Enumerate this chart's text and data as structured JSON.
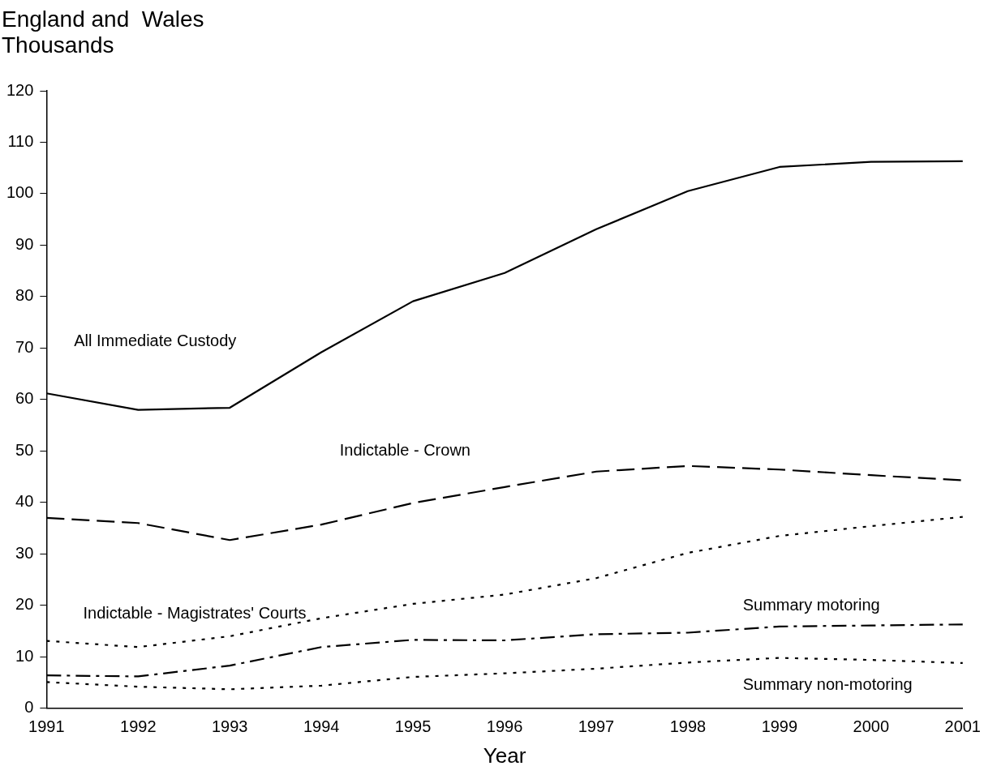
{
  "chart_data": {
    "type": "line",
    "title": "England and  Wales",
    "ylabel": "Thousands",
    "xlabel": "Year",
    "categories": [
      "1991",
      "1992",
      "1993",
      "1994",
      "1995",
      "1996",
      "1997",
      "1998",
      "1999",
      "2000",
      "2001"
    ],
    "ylim": [
      0,
      120
    ],
    "yticks": [
      0,
      10,
      20,
      30,
      40,
      50,
      60,
      70,
      80,
      90,
      100,
      110,
      120
    ],
    "grid": false,
    "legend": false,
    "marker": "none",
    "series": [
      {
        "name": "All Immediate Custody",
        "color": "#000000",
        "line_style": "solid",
        "values": [
          61.2,
          58,
          58.4,
          69.2,
          79.1,
          84.6,
          93.1,
          100.5,
          105.2,
          106.2,
          106.3
        ]
      },
      {
        "name": "Indictable - Crown",
        "color": "#000000",
        "line_style": "dashed",
        "values": [
          37,
          36,
          32.7,
          35.7,
          39.9,
          43,
          46,
          47.1,
          46.4,
          45.3,
          44.3
        ]
      },
      {
        "name": "Indictable - Magistrates' Courts",
        "color": "#000000",
        "line_style": "dotted",
        "values": [
          13.1,
          11.9,
          14,
          17.5,
          20.3,
          22.1,
          25.3,
          30.2,
          33.5,
          35.4,
          37.2
        ]
      },
      {
        "name": "Summary motoring",
        "color": "#000000",
        "line_style": "dashdot",
        "values": [
          6.4,
          6.2,
          8.3,
          11.9,
          13.3,
          13.2,
          14.4,
          14.7,
          15.9,
          16.1,
          16.3
        ]
      },
      {
        "name": "Summary non-motoring",
        "color": "#000000",
        "line_style": "dotted",
        "values": [
          5.1,
          4.2,
          3.7,
          4.4,
          6.1,
          6.8,
          7.7,
          8.9,
          9.8,
          9.4,
          8.8
        ]
      }
    ]
  }
}
